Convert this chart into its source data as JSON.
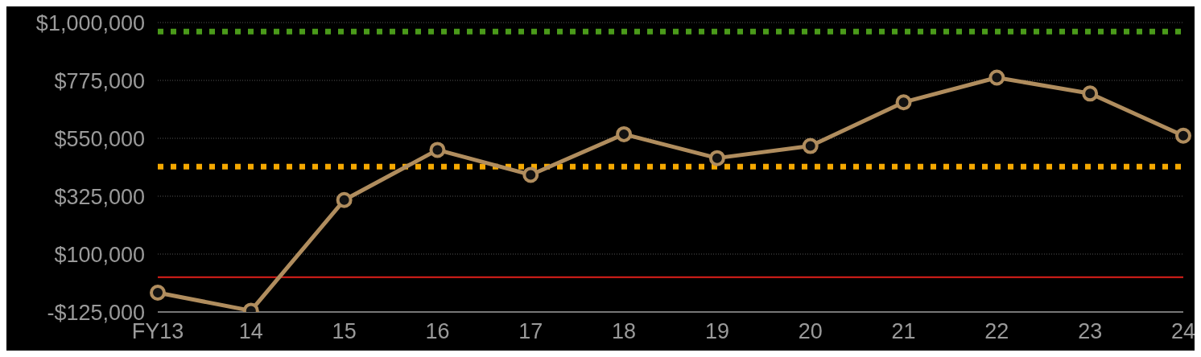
{
  "chart_data": {
    "type": "line",
    "categories": [
      "FY13",
      "14",
      "15",
      "16",
      "17",
      "18",
      "19",
      "20",
      "21",
      "22",
      "23",
      "24"
    ],
    "series": [
      {
        "color": "#b08d5e",
        "values": [
          -50000,
          -120000,
          310000,
          505000,
          408000,
          566000,
          473000,
          520000,
          690000,
          786000,
          724000,
          560000
        ]
      }
    ],
    "ylim": [
      -125000,
      1000000
    ],
    "yticks": [
      {
        "value": -125000,
        "label": "-$125,000"
      },
      {
        "value": 100000,
        "label": "$100,000"
      },
      {
        "value": 325000,
        "label": "$325,000"
      },
      {
        "value": 550000,
        "label": "$550,000"
      },
      {
        "value": 775000,
        "label": "$775,000"
      },
      {
        "value": 1000000,
        "label": "$1,000,000"
      }
    ],
    "ref_lines": [
      {
        "axis": "y",
        "value": 965000,
        "color": "#4a9a1a",
        "line_style": "dotted"
      },
      {
        "axis": "y",
        "value": 440000,
        "color": "#f5a800",
        "line_style": "dotted"
      },
      {
        "axis": "y",
        "value": 10000,
        "color": "#e0201a",
        "line_style": "solid"
      }
    ],
    "grid": "y",
    "marker": "circle",
    "line_style": "solid",
    "legend": false
  }
}
